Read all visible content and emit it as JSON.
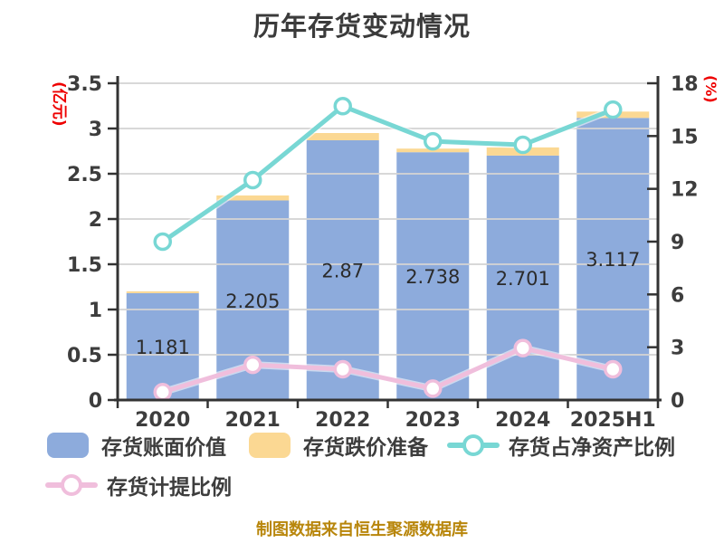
{
  "header": {
    "title": "历年存货变动情况"
  },
  "footer": {
    "text": "制图数据来自恒生聚源数据库"
  },
  "colors": {
    "bar_book_value": "#8dabdc",
    "bar_provision": "#fbd893",
    "line_net_asset_ratio": "#78d7d4",
    "line_provision_ratio": "#f0bedc",
    "axis_title_red": "#ee0000",
    "footer_gold": "#b8860b",
    "text_dark": "#3d3d3d",
    "bar_label_dark": "#2b2b2b",
    "gridline": "#d4d4d4",
    "axis_line": "#333333"
  },
  "legend": {
    "items": [
      {
        "label": "存货账面价值",
        "swatch": "bar",
        "color_key": "bar_book_value"
      },
      {
        "label": "存货跌价准备",
        "swatch": "bar",
        "color_key": "bar_provision"
      },
      {
        "label": "存货占净资产比例",
        "swatch": "line-marker",
        "color_key": "line_net_asset_ratio"
      },
      {
        "label": "存货计提比例",
        "swatch": "line-marker",
        "color_key": "line_provision_ratio"
      }
    ]
  },
  "chart_data": {
    "type": "bar",
    "title": "历年存货变动情况",
    "categories": [
      "2020",
      "2021",
      "2022",
      "2023",
      "2024",
      "2025H1"
    ],
    "series": [
      {
        "name": "存货账面价值",
        "type": "bar",
        "axis": "left",
        "stack": true,
        "values": [
          1.181,
          2.205,
          2.87,
          2.738,
          2.701,
          3.117
        ],
        "data_labels": [
          "1.181",
          "2.205",
          "2.87",
          "2.738",
          "2.701",
          "3.117"
        ]
      },
      {
        "name": "存货跌价准备",
        "type": "bar",
        "axis": "left",
        "stack": true,
        "values_estimated": true,
        "values": [
          0.02,
          0.055,
          0.08,
          0.04,
          0.09,
          0.07
        ]
      },
      {
        "name": "存货占净资产比例",
        "type": "line",
        "axis": "right",
        "values_estimated": true,
        "values": [
          9.0,
          12.5,
          16.7,
          14.7,
          14.5,
          16.5
        ]
      },
      {
        "name": "存货计提比例",
        "type": "line",
        "axis": "right",
        "values_estimated": true,
        "values": [
          0.45,
          2.0,
          1.75,
          0.65,
          2.95,
          1.75
        ]
      }
    ],
    "left_axis": {
      "label": "(亿元)",
      "min": 0,
      "max": 3.5,
      "ticks": [
        "0",
        "0.5",
        "1",
        "1.5",
        "2",
        "2.5",
        "3",
        "3.5"
      ]
    },
    "right_axis": {
      "label": "(%)",
      "min": 0,
      "max": 18,
      "ticks": [
        "0",
        "3",
        "6",
        "9",
        "12",
        "15",
        "18"
      ]
    },
    "grid": true,
    "legend_position": "bottom"
  }
}
